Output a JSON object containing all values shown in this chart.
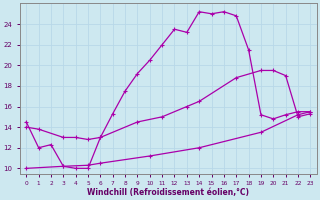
{
  "bg_color": "#cde8f0",
  "line_color": "#aa00aa",
  "grid_color": "#b8d8e8",
  "xlabel": "Windchill (Refroidissement éolien,°C)",
  "xlabel_color": "#660066",
  "tick_color": "#660066",
  "xlim": [
    -0.5,
    23.5
  ],
  "ylim": [
    9.5,
    26.0
  ],
  "yticks": [
    10,
    12,
    14,
    16,
    18,
    20,
    22,
    24
  ],
  "xticks": [
    0,
    1,
    2,
    3,
    4,
    5,
    6,
    7,
    8,
    9,
    10,
    11,
    12,
    13,
    14,
    15,
    16,
    17,
    18,
    19,
    20,
    21,
    22,
    23
  ],
  "line1_x": [
    0,
    1,
    2,
    3,
    4,
    5,
    6,
    7,
    8,
    9,
    10,
    11,
    12,
    13,
    14,
    15,
    16,
    17,
    18,
    19,
    20,
    21,
    22,
    23
  ],
  "line1_y": [
    14.5,
    12.0,
    12.3,
    10.2,
    10.0,
    10.0,
    13.0,
    15.3,
    17.5,
    19.2,
    20.5,
    22.0,
    23.5,
    23.2,
    25.2,
    25.0,
    25.2,
    24.8,
    21.5,
    15.2,
    14.8,
    15.2,
    15.5,
    15.5
  ],
  "line2_x": [
    0,
    1,
    3,
    4,
    5,
    6,
    9,
    11,
    13,
    14,
    17,
    19,
    20,
    21,
    22,
    23
  ],
  "line2_y": [
    14.0,
    13.8,
    13.0,
    13.0,
    12.8,
    13.0,
    14.5,
    15.0,
    16.0,
    16.5,
    18.8,
    19.5,
    19.5,
    19.0,
    15.0,
    15.3
  ],
  "line3_x": [
    0,
    3,
    5,
    6,
    10,
    14,
    19,
    22,
    23
  ],
  "line3_y": [
    10.0,
    10.2,
    10.3,
    10.5,
    11.2,
    12.0,
    13.5,
    15.2,
    15.5
  ]
}
